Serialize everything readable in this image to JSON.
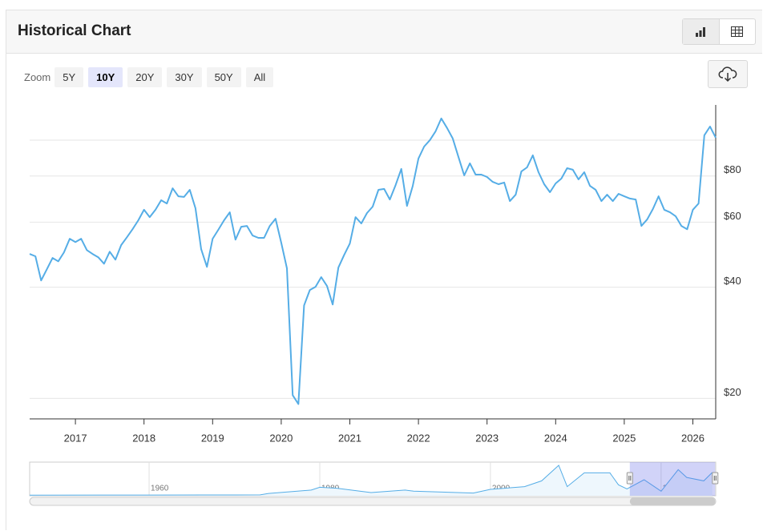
{
  "header": {
    "title": "Historical Chart"
  },
  "zoom": {
    "label": "Zoom",
    "options": [
      "5Y",
      "10Y",
      "20Y",
      "30Y",
      "50Y",
      "All"
    ],
    "selected": 1
  },
  "chart_data": {
    "type": "line",
    "log_scale": true,
    "grid": true,
    "color": "#55ade6",
    "x": [
      2016.333,
      2016.417,
      2016.5,
      2016.583,
      2016.667,
      2016.75,
      2016.833,
      2016.917,
      2017.0,
      2017.083,
      2017.167,
      2017.25,
      2017.333,
      2017.417,
      2017.5,
      2017.583,
      2017.667,
      2017.75,
      2017.833,
      2017.917,
      2018.0,
      2018.083,
      2018.167,
      2018.25,
      2018.333,
      2018.417,
      2018.5,
      2018.583,
      2018.667,
      2018.75,
      2018.833,
      2018.917,
      2019.0,
      2019.083,
      2019.167,
      2019.25,
      2019.333,
      2019.417,
      2019.5,
      2019.583,
      2019.667,
      2019.75,
      2019.833,
      2019.917,
      2020.0,
      2020.083,
      2020.167,
      2020.25,
      2020.333,
      2020.417,
      2020.5,
      2020.583,
      2020.667,
      2020.75,
      2020.833,
      2020.917,
      2021.0,
      2021.083,
      2021.167,
      2021.25,
      2021.333,
      2021.417,
      2021.5,
      2021.583,
      2021.667,
      2021.75,
      2021.833,
      2021.917,
      2022.0,
      2022.083,
      2022.167,
      2022.25,
      2022.333,
      2022.417,
      2022.5,
      2022.583,
      2022.667,
      2022.75,
      2022.833,
      2022.917,
      2023.0,
      2023.083,
      2023.167,
      2023.25,
      2023.333,
      2023.417,
      2023.5,
      2023.583,
      2023.667,
      2023.75,
      2023.833,
      2023.917,
      2024.0,
      2024.083,
      2024.167,
      2024.25,
      2024.333,
      2024.417,
      2024.5,
      2024.583,
      2024.667,
      2024.75,
      2024.833,
      2024.917,
      2025.0,
      2025.083,
      2025.167,
      2025.25,
      2025.333,
      2025.417,
      2025.5,
      2025.583,
      2025.667,
      2025.75,
      2025.833,
      2025.917,
      2026.0,
      2026.083,
      2026.167,
      2026.25,
      2026.333
    ],
    "values": [
      49.2,
      48.5,
      41.7,
      44.7,
      48.0,
      47.0,
      49.7,
      54.1,
      53.0,
      54.1,
      50.4,
      49.2,
      48.2,
      46.3,
      49.9,
      47.5,
      52.0,
      54.6,
      57.4,
      60.7,
      64.8,
      61.9,
      64.8,
      68.8,
      67.4,
      74.1,
      70.5,
      70.2,
      73.4,
      65.4,
      50.7,
      45.4,
      54.1,
      57.2,
      60.7,
      63.8,
      53.8,
      58.3,
      58.6,
      55.2,
      54.4,
      54.4,
      58.6,
      61.3,
      52.8,
      45.0,
      20.4,
      19.3,
      35.7,
      39.3,
      40.1,
      42.6,
      40.3,
      35.9,
      45.2,
      48.9,
      52.5,
      61.9,
      59.5,
      63.5,
      66.1,
      73.4,
      73.8,
      69.1,
      75.6,
      83.6,
      66.4,
      75.2,
      89.2,
      96.1,
      100.1,
      105.7,
      114.5,
      107.9,
      101.1,
      90.1,
      80.3,
      86.6,
      80.7,
      80.7,
      79.5,
      77.1,
      76.0,
      76.8,
      68.4,
      71.2,
      82.3,
      84.4,
      91.0,
      81.9,
      76.0,
      72.3,
      76.4,
      78.7,
      84.0,
      83.2,
      78.3,
      81.9,
      75.2,
      73.4,
      68.4,
      71.2,
      68.4,
      71.6,
      70.5,
      69.5,
      69.1,
      58.6,
      61.0,
      65.1,
      70.5,
      64.8,
      63.8,
      62.2,
      58.6,
      57.4,
      64.8,
      67.4,
      103.1,
      108.9,
      101.6
    ],
    "xlim": [
      2016.333,
      2026.333
    ],
    "xticks": [
      2017,
      2018,
      2019,
      2020,
      2021,
      2022,
      2023,
      2024,
      2025,
      2026
    ],
    "ylim": [
      17.6,
      124.6
    ],
    "yticks": [
      {
        "value": 20,
        "label": "$20"
      },
      {
        "value": 40,
        "label": "$40"
      },
      {
        "value": 60,
        "label": "$60"
      },
      {
        "value": 80,
        "label": "$80"
      },
      {
        "value": 100,
        "label": null
      }
    ],
    "navigator": {
      "x": [
        1946,
        1960,
        1970,
        1973,
        1974,
        1979,
        1980,
        1982,
        1986,
        1990,
        1991,
        1998,
        2000,
        2004,
        2006,
        2008,
        2009,
        2011,
        2014,
        2015,
        2016,
        2018,
        2020,
        2022,
        2023,
        2025,
        2026
      ],
      "values": [
        2.5,
        3,
        3.4,
        4,
        10,
        25,
        37,
        33,
        14,
        25,
        20,
        12,
        28,
        40,
        65,
        133,
        40,
        100,
        100,
        48,
        30,
        70,
        20,
        114,
        80,
        65,
        102
      ],
      "xlim": [
        1946,
        2026.4
      ],
      "ylim": [
        0,
        140
      ],
      "xticks": [
        1960,
        1980,
        2000,
        2020
      ]
    }
  }
}
